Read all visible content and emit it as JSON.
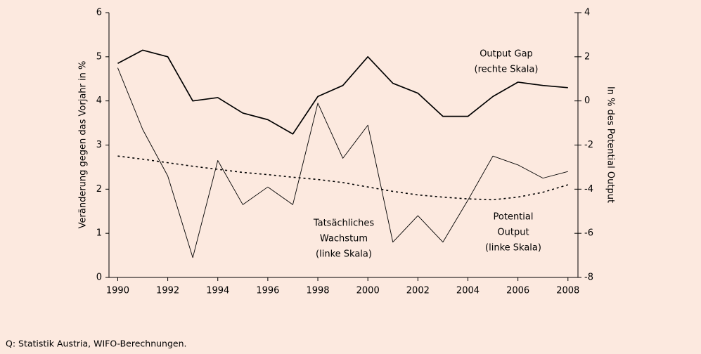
{
  "chart_data": {
    "type": "line",
    "y_label": "Veränderung gegen das Vorjahr in %",
    "y2_label": "In % des Potential Output",
    "x": [
      1990,
      1991,
      1992,
      1993,
      1994,
      1995,
      1996,
      1997,
      1998,
      1999,
      2000,
      2001,
      2002,
      2003,
      2004,
      2005,
      2006,
      2007,
      2008
    ],
    "series": [
      {
        "name": "Output Gap (rechte Skala)",
        "color": "#000000",
        "style": "solid",
        "axis": "y2",
        "values": [
          1.7,
          2.3,
          2.0,
          0.0,
          0.15,
          -0.55,
          -0.85,
          -1.5,
          0.2,
          0.7,
          2.0,
          0.8,
          0.35,
          -0.7,
          -0.7,
          0.2,
          0.85,
          0.7,
          0.6
        ]
      },
      {
        "name": "Tatsächliches Wachstum (linke Skala)",
        "color": "#000000",
        "style": "thin",
        "values": [
          4.75,
          3.35,
          2.3,
          0.45,
          2.65,
          1.65,
          2.05,
          1.65,
          3.95,
          2.7,
          3.45,
          0.8,
          1.4,
          0.8,
          1.75,
          2.75,
          2.55,
          2.25,
          2.4
        ]
      },
      {
        "name": "Potential Output (linke Skala)",
        "color": "#000000",
        "style": "dotted",
        "values": [
          2.75,
          2.68,
          2.6,
          2.52,
          2.45,
          2.38,
          2.33,
          2.27,
          2.22,
          2.15,
          2.05,
          1.95,
          1.87,
          1.82,
          1.78,
          1.76,
          1.82,
          1.93,
          2.1
        ]
      }
    ],
    "annotations": [
      [
        "Output Gap",
        "(rechte Skala)"
      ],
      [
        "Tatsächliches",
        "Wachstum",
        "(linke Skala)"
      ],
      [
        "Potential",
        "Output",
        "(linke Skala)"
      ]
    ],
    "xlim": [
      1989.65,
      2008.4
    ],
    "xticks": [
      1990,
      1992,
      1994,
      1996,
      1998,
      2000,
      2002,
      2004,
      2006,
      2008
    ],
    "ylim": [
      0,
      6
    ],
    "yticks": [
      0,
      1,
      2,
      3,
      4,
      5,
      6
    ],
    "y2lim": [
      -8,
      4
    ],
    "y2ticks": [
      -8,
      -6,
      -4,
      -2,
      0,
      2,
      4
    ],
    "source": "Q: Statistik Austria, WIFO-Berechnungen."
  }
}
